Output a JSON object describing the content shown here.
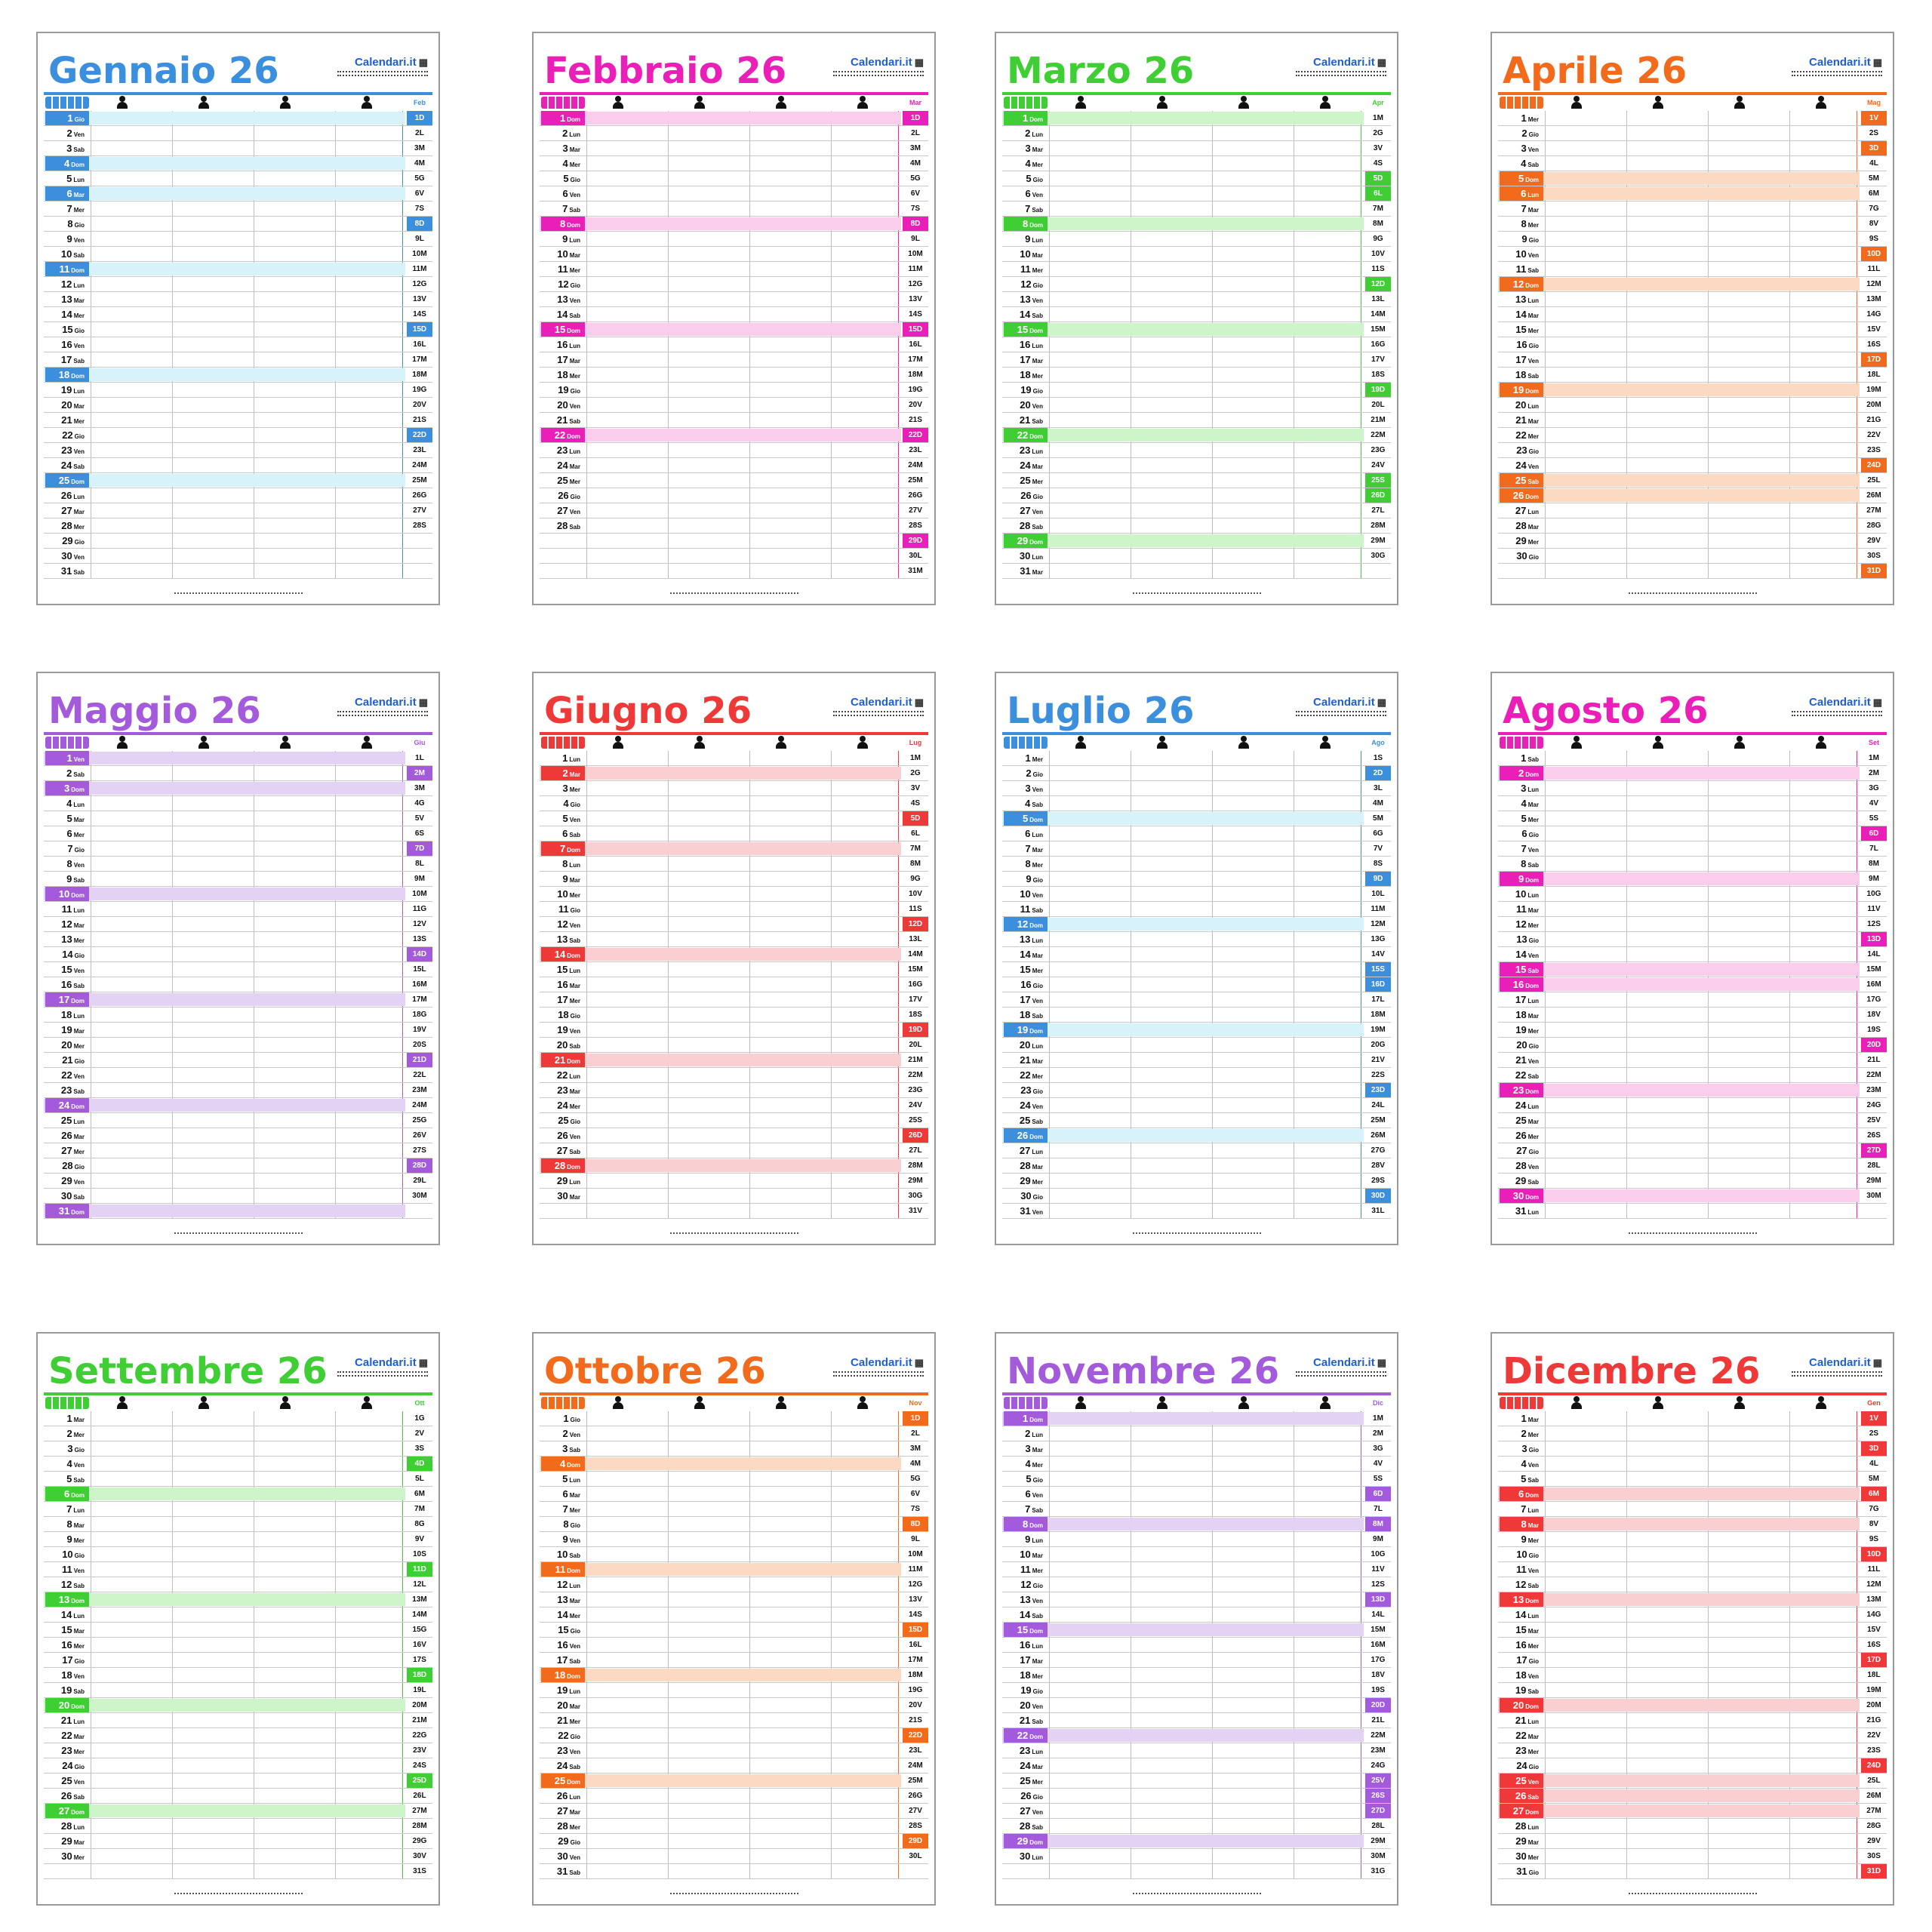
{
  "brand": {
    "name": "Calendari.it"
  },
  "icons": {
    "family": "family-icon",
    "person": "person-icon",
    "logo": "calendar-logo-icon"
  },
  "months": [
    {
      "name": "Gennaio",
      "year": "26",
      "color": "#3b8fdc",
      "light": "#d7f2fa",
      "next": "Feb",
      "startDow": 3,
      "days": 31,
      "holidays": [
        1,
        6
      ],
      "nextStartDow": 6,
      "nextDays": 28,
      "nextHolidays": []
    },
    {
      "name": "Febbraio",
      "year": "26",
      "color": "#ea1fb7",
      "light": "#fbcdec",
      "next": "Mar",
      "startDow": 6,
      "days": 28,
      "holidays": [],
      "nextStartDow": 6,
      "nextDays": 31,
      "nextHolidays": []
    },
    {
      "name": "Marzo",
      "year": "26",
      "color": "#3fcf35",
      "light": "#cdf5c9",
      "next": "Apr",
      "startDow": 6,
      "days": 31,
      "holidays": [],
      "nextStartDow": 2,
      "nextDays": 30,
      "nextHolidays": [
        6,
        25
      ]
    },
    {
      "name": "Aprile",
      "year": "26",
      "color": "#f26a1b",
      "light": "#fbd9c2",
      "next": "Mag",
      "startDow": 2,
      "days": 30,
      "holidays": [
        6,
        25
      ],
      "nextStartDow": 4,
      "nextDays": 31,
      "nextHolidays": [
        1
      ]
    },
    {
      "name": "Maggio",
      "year": "26",
      "color": "#a35bdc",
      "light": "#e4d2f5",
      "next": "Giu",
      "startDow": 4,
      "days": 31,
      "holidays": [
        1
      ],
      "nextStartDow": 0,
      "nextDays": 30,
      "nextHolidays": [
        2
      ]
    },
    {
      "name": "Giugno",
      "year": "26",
      "color": "#ef3838",
      "light": "#f9cfd2",
      "next": "Lug",
      "startDow": 0,
      "days": 30,
      "holidays": [
        2
      ],
      "nextStartDow": 2,
      "nextDays": 31,
      "nextHolidays": []
    },
    {
      "name": "Luglio",
      "year": "26",
      "color": "#3b8fdc",
      "light": "#d7f2fa",
      "next": "Ago",
      "startDow": 2,
      "days": 31,
      "holidays": [],
      "nextStartDow": 5,
      "nextDays": 31,
      "nextHolidays": [
        15
      ]
    },
    {
      "name": "Agosto",
      "year": "26",
      "color": "#ea1fb7",
      "light": "#fbcdec",
      "next": "Set",
      "startDow": 5,
      "days": 31,
      "holidays": [
        15
      ],
      "nextStartDow": 1,
      "nextDays": 30,
      "nextHolidays": []
    },
    {
      "name": "Settembre",
      "year": "26",
      "color": "#3fcf35",
      "light": "#cdf5c9",
      "next": "Ott",
      "startDow": 1,
      "days": 30,
      "holidays": [],
      "nextStartDow": 3,
      "nextDays": 31,
      "nextHolidays": []
    },
    {
      "name": "Ottobre",
      "year": "26",
      "color": "#f26a1b",
      "light": "#fbd9c2",
      "next": "Nov",
      "startDow": 3,
      "days": 31,
      "holidays": [],
      "nextStartDow": 6,
      "nextDays": 30,
      "nextHolidays": [
        1
      ]
    },
    {
      "name": "Novembre",
      "year": "26",
      "color": "#a35bdc",
      "light": "#e4d2f5",
      "next": "Dic",
      "startDow": 6,
      "days": 30,
      "holidays": [
        1
      ],
      "nextStartDow": 1,
      "nextDays": 31,
      "nextHolidays": [
        8,
        25,
        26
      ]
    },
    {
      "name": "Dicembre",
      "year": "26",
      "color": "#ef3838",
      "light": "#f9cfd2",
      "next": "Gen",
      "startDow": 1,
      "days": 31,
      "holidays": [
        8,
        25,
        26
      ],
      "nextStartDow": 4,
      "nextDays": 31,
      "nextHolidays": [
        1,
        6
      ]
    }
  ],
  "weekdays": [
    "Lun",
    "Mar",
    "Mer",
    "Gio",
    "Ven",
    "Sab",
    "Dom"
  ],
  "weekdayLetters": [
    "L",
    "M",
    "M",
    "G",
    "V",
    "S",
    "D"
  ]
}
